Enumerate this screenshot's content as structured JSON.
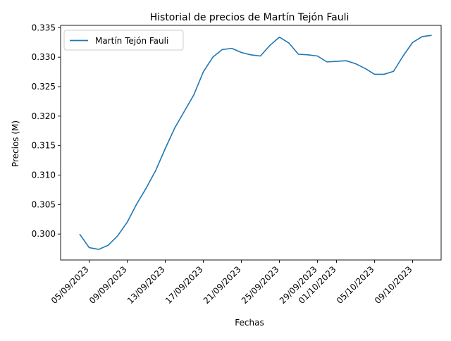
{
  "chart_data": {
    "type": "line",
    "title": "Historial de precios de Martín Tejón Fauli",
    "xlabel": "Fechas",
    "ylabel": "Precios (M)",
    "x_ticks": [
      {
        "label": "05/09/2023",
        "date": "2023-09-05"
      },
      {
        "label": "09/09/2023",
        "date": "2023-09-09"
      },
      {
        "label": "13/09/2023",
        "date": "2023-09-13"
      },
      {
        "label": "17/09/2023",
        "date": "2023-09-17"
      },
      {
        "label": "21/09/2023",
        "date": "2023-09-21"
      },
      {
        "label": "25/09/2023",
        "date": "2023-09-25"
      },
      {
        "label": "29/09/2023",
        "date": "2023-09-29"
      },
      {
        "label": "01/10/2023",
        "date": "2023-10-01"
      },
      {
        "label": "05/10/2023",
        "date": "2023-10-05"
      },
      {
        "label": "09/10/2023",
        "date": "2023-10-09"
      }
    ],
    "y_ticks": [
      0.3,
      0.305,
      0.31,
      0.315,
      0.32,
      0.325,
      0.33,
      0.335
    ],
    "y_tick_labels": [
      "0.300",
      "0.305",
      "0.310",
      "0.315",
      "0.320",
      "0.325",
      "0.330",
      "0.335"
    ],
    "xlim": [
      "2023-09-02T00:00",
      "2023-10-12T00:00"
    ],
    "ylim": [
      0.2956,
      0.3354
    ],
    "legend_position": "upper-left",
    "grid": false,
    "series": [
      {
        "name": "Martín Tejón Fauli",
        "color": "#1f77b4",
        "x": [
          "2023-09-04",
          "2023-09-05",
          "2023-09-06",
          "2023-09-07",
          "2023-09-08",
          "2023-09-09",
          "2023-09-10",
          "2023-09-11",
          "2023-09-12",
          "2023-09-13",
          "2023-09-14",
          "2023-09-15",
          "2023-09-16",
          "2023-09-17",
          "2023-09-18",
          "2023-09-19",
          "2023-09-20",
          "2023-09-21",
          "2023-09-22",
          "2023-09-23",
          "2023-09-24",
          "2023-09-25",
          "2023-09-26",
          "2023-09-27",
          "2023-09-28",
          "2023-09-29",
          "2023-09-30",
          "2023-10-01",
          "2023-10-02",
          "2023-10-03",
          "2023-10-04",
          "2023-10-05",
          "2023-10-06",
          "2023-10-07",
          "2023-10-08",
          "2023-10-09",
          "2023-10-10",
          "2023-10-11"
        ],
        "y": [
          0.3,
          0.2977,
          0.2974,
          0.2981,
          0.2997,
          0.302,
          0.3051,
          0.3078,
          0.3108,
          0.3145,
          0.318,
          0.3208,
          0.3236,
          0.3275,
          0.33,
          0.3313,
          0.3315,
          0.3308,
          0.3304,
          0.3302,
          0.332,
          0.3334,
          0.3324,
          0.3305,
          0.3304,
          0.3302,
          0.3292,
          0.3293,
          0.3294,
          0.3289,
          0.3281,
          0.3271,
          0.3271,
          0.3276,
          0.3302,
          0.3325,
          0.3335,
          0.3337
        ]
      }
    ]
  }
}
